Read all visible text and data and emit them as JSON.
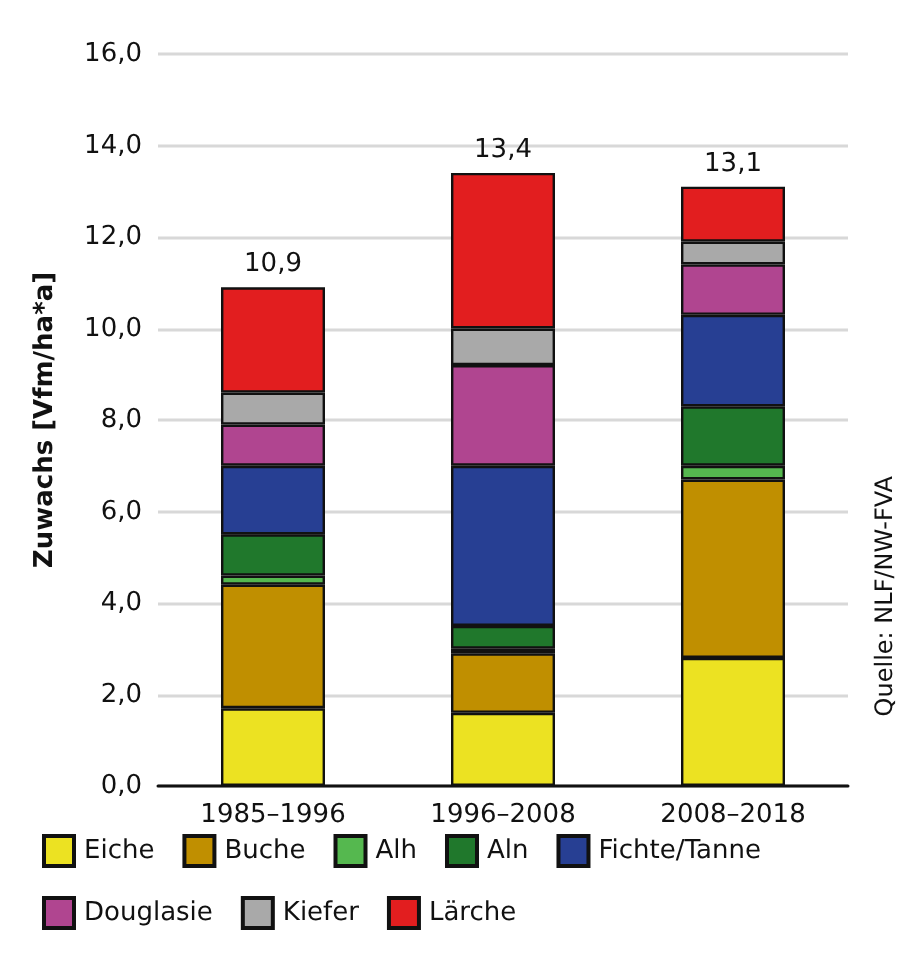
{
  "chart_data": {
    "type": "bar",
    "stacked": true,
    "ylabel": "Zuwachs [Vfm/ha*a]",
    "categories": [
      "1985–1996",
      "1996–2008",
      "2008–2018"
    ],
    "series": [
      {
        "name": "Eiche",
        "color": "#ece222",
        "values": [
          1.7,
          1.6,
          2.8
        ]
      },
      {
        "name": "Buche",
        "color": "#c08f00",
        "values": [
          2.7,
          1.3,
          3.9
        ]
      },
      {
        "name": "Alh",
        "color": "#55b84f",
        "values": [
          0.2,
          0.1,
          0.3
        ]
      },
      {
        "name": "Aln",
        "color": "#20782c",
        "values": [
          0.9,
          0.5,
          1.3
        ]
      },
      {
        "name": "Fichte/Tanne",
        "color": "#273f93",
        "values": [
          1.5,
          3.5,
          2.0
        ]
      },
      {
        "name": "Douglasie",
        "color": "#b04590",
        "values": [
          0.9,
          2.2,
          1.1
        ]
      },
      {
        "name": "Kiefer",
        "color": "#a9a9a9",
        "values": [
          0.7,
          0.8,
          0.5
        ]
      },
      {
        "name": "Lärche",
        "color": "#e21e1f",
        "values": [
          2.3,
          3.4,
          1.2
        ]
      }
    ],
    "totals": [
      "10,9",
      "13,4",
      "13,1"
    ],
    "ylim": [
      0,
      16
    ],
    "yticks": [
      {
        "value": 0,
        "label": "0,0"
      },
      {
        "value": 2,
        "label": "2,0"
      },
      {
        "value": 4,
        "label": "4,0"
      },
      {
        "value": 6,
        "label": "6,0"
      },
      {
        "value": 8,
        "label": "8,0"
      },
      {
        "value": 10,
        "label": "10,0"
      },
      {
        "value": 12,
        "label": "12,0"
      },
      {
        "value": 14,
        "label": "14,0"
      },
      {
        "value": 16,
        "label": "16,0"
      }
    ],
    "grid": "y",
    "legend": "bottom",
    "annotations": [
      "Quelle: NLF/NW-FVA"
    ]
  }
}
